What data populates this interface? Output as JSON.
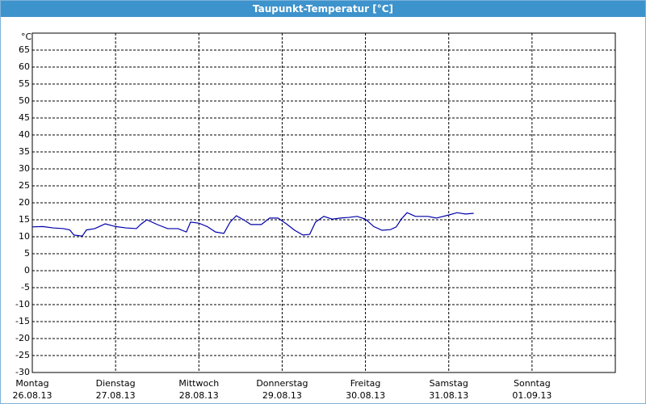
{
  "window_title": "Taupunkt-Temperatur [°C]",
  "chart_data": {
    "type": "line",
    "y_unit": "°C",
    "xlim": [
      0,
      7
    ],
    "ylim": [
      -30,
      70
    ],
    "yticks": [
      -30,
      -25,
      -20,
      -15,
      -10,
      -5,
      0,
      5,
      10,
      15,
      20,
      25,
      30,
      35,
      40,
      45,
      50,
      55,
      60,
      65
    ],
    "xticks": [
      {
        "value": 0,
        "label": "Montag",
        "date": "26.08.13"
      },
      {
        "value": 1,
        "label": "Dienstag",
        "date": "27.08.13"
      },
      {
        "value": 2,
        "label": "Mittwoch",
        "date": "28.08.13"
      },
      {
        "value": 3,
        "label": "Donnerstag",
        "date": "29.08.13"
      },
      {
        "value": 4,
        "label": "Freitag",
        "date": "30.08.13"
      },
      {
        "value": 5,
        "label": "Samstag",
        "date": "31.08.13"
      },
      {
        "value": 6,
        "label": "Sonntag",
        "date": "01.09.13"
      }
    ],
    "grid": true,
    "series": [
      {
        "color": "#0000aa",
        "x": [
          0,
          0.125,
          0.25,
          0.375,
          0.45,
          0.5,
          0.6,
          0.65,
          0.75,
          0.875,
          1.0,
          1.125,
          1.25,
          1.3,
          1.375,
          1.5,
          1.625,
          1.75,
          1.85,
          1.9,
          2.0,
          2.1,
          2.2,
          2.3,
          2.375,
          2.45,
          2.55,
          2.625,
          2.75,
          2.85,
          2.95,
          3.05,
          3.15,
          3.25,
          3.33,
          3.4,
          3.5,
          3.6,
          3.7,
          3.8,
          3.9,
          4.0,
          4.1,
          4.2,
          4.3,
          4.37,
          4.43,
          4.5,
          4.6,
          4.75,
          4.85,
          5.0,
          5.1,
          5.2,
          5.3
        ],
        "values": [
          12.9,
          13,
          12.6,
          12.4,
          12,
          10.5,
          10.2,
          12,
          12.4,
          13.8,
          13,
          12.6,
          12.4,
          13.6,
          15,
          13.6,
          12.4,
          12.4,
          11.4,
          14.3,
          14,
          13,
          11.4,
          11,
          14.3,
          16.2,
          14.8,
          13.6,
          13.6,
          15.5,
          15.5,
          13.8,
          11.9,
          10.5,
          10.7,
          14.3,
          16,
          15.2,
          15.5,
          15.7,
          16,
          15.2,
          13,
          11.9,
          12.1,
          12.9,
          15.2,
          17.1,
          16,
          16,
          15.5,
          16.4,
          17.1,
          16.7,
          16.9
        ]
      }
    ]
  }
}
